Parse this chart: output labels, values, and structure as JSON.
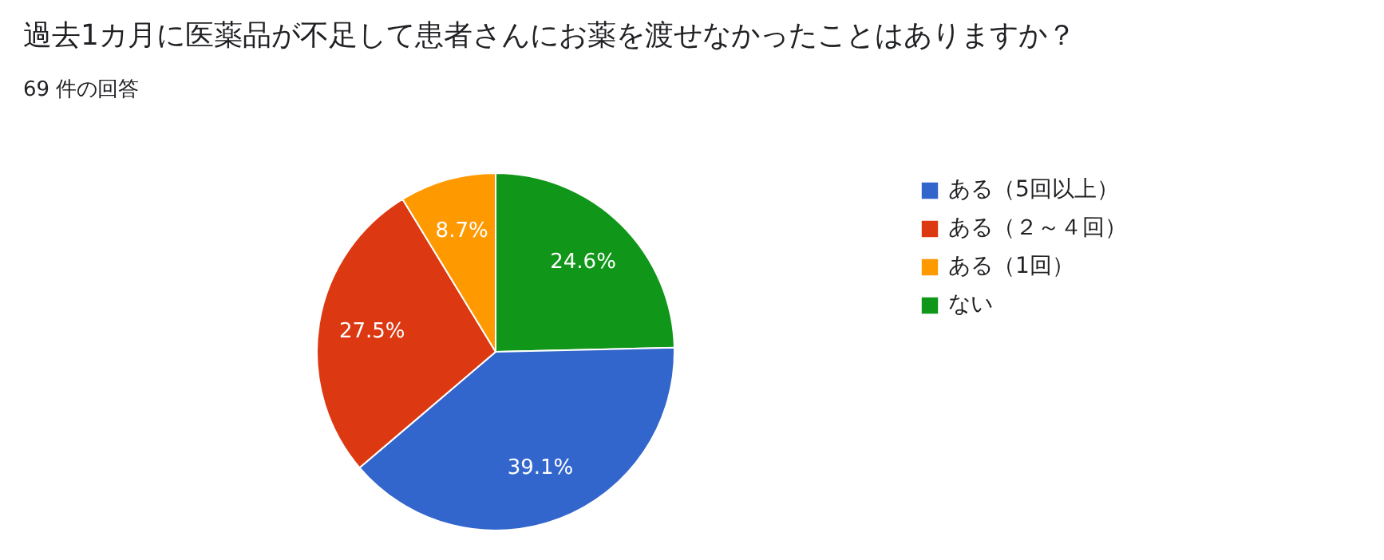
{
  "chart_data": {
    "type": "pie",
    "title": "過去1カ月に医薬品が不足して患者さんにお薬を渡せなかったことはありますか？",
    "subtitle": "69 件の回答",
    "categories": [
      "ある（5回以上）",
      "ある（２～４回）",
      "ある（1回）",
      "ない"
    ],
    "values": [
      39.1,
      27.5,
      8.7,
      24.6
    ],
    "colors": [
      "#3366cc",
      "#dc3912",
      "#ff9900",
      "#109618"
    ],
    "value_labels": [
      "39.1%",
      "27.5%",
      "8.7%",
      "24.6%"
    ],
    "legend": "right"
  }
}
